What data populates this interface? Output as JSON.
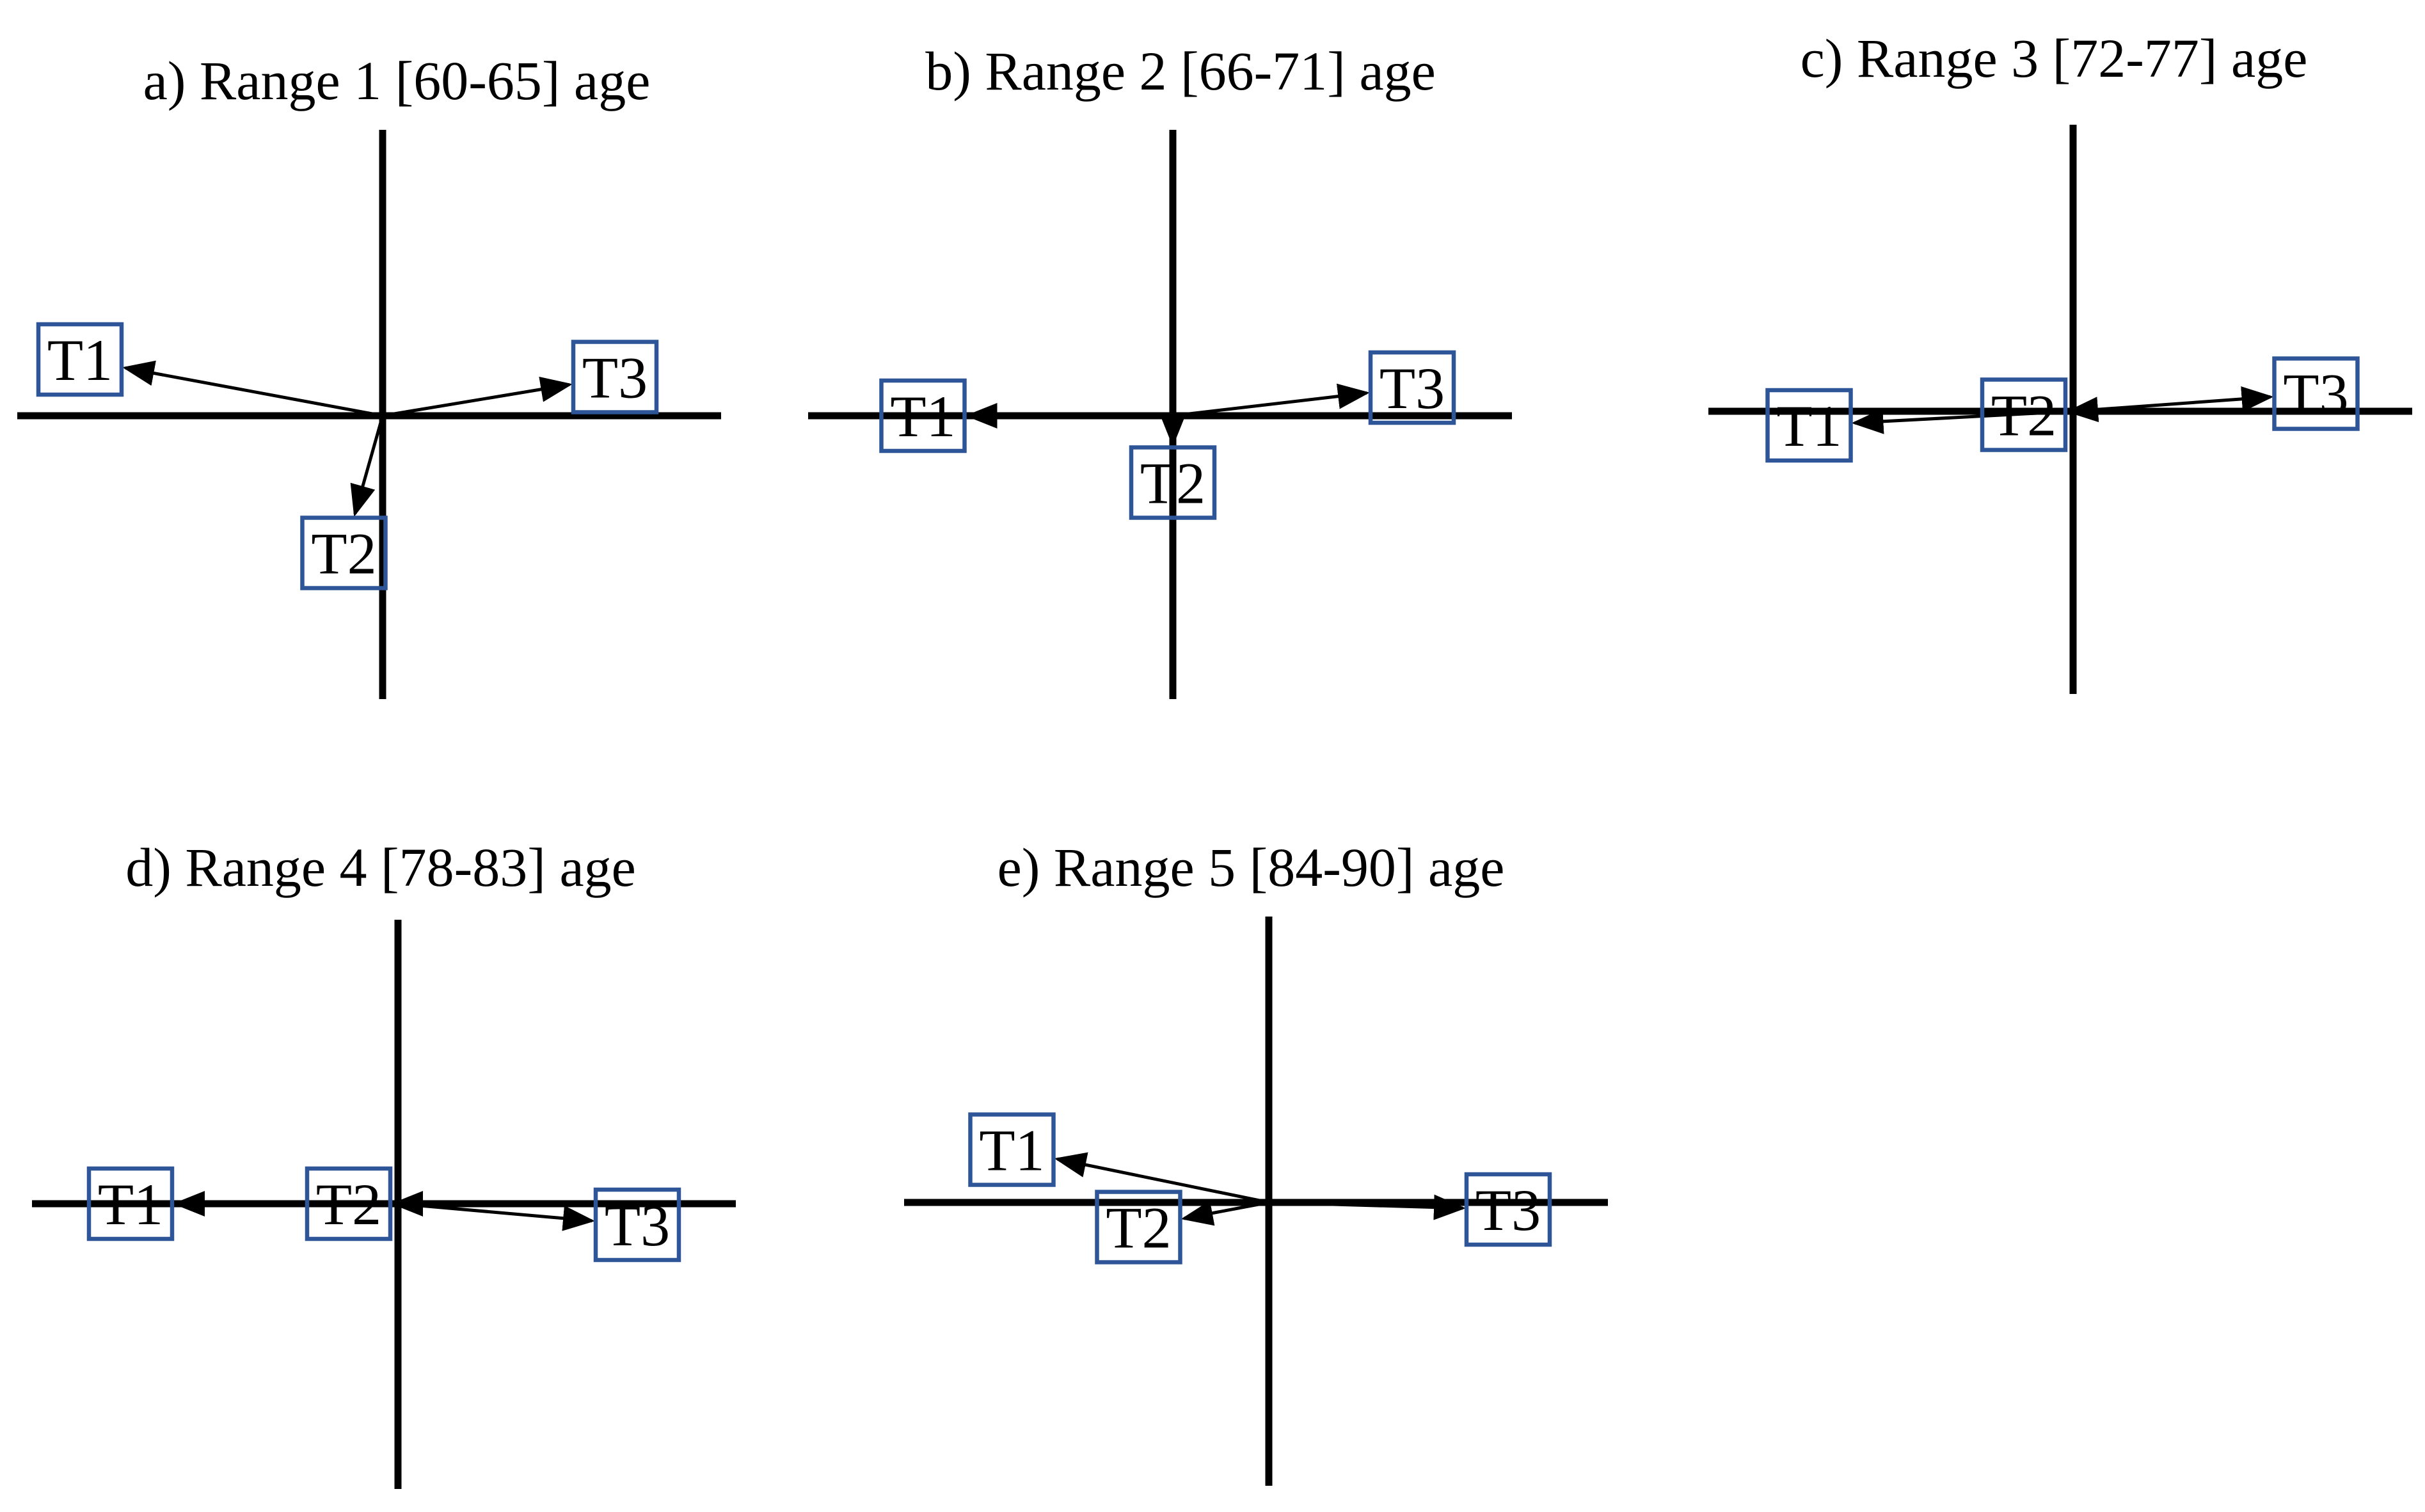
{
  "colors": {
    "box_border": "#2e5597",
    "axis": "#000000",
    "arrow": "#000000"
  },
  "panels": [
    {
      "title": "a) Range 1 [60-65] age",
      "nodes": [
        {
          "label": "T1",
          "dx": -0.86,
          "dy": 0.16
        },
        {
          "label": "T2",
          "dx": -0.11,
          "dy": -0.39
        },
        {
          "label": "T3",
          "dx": 0.66,
          "dy": 0.11
        }
      ]
    },
    {
      "title": "b) Range 2 [66-71] age",
      "nodes": [
        {
          "label": "T1",
          "dx": -0.71,
          "dy": 0.0
        },
        {
          "label": "T2",
          "dx": 0.0,
          "dy": -0.19
        },
        {
          "label": "T3",
          "dx": 0.68,
          "dy": 0.08
        }
      ]
    },
    {
      "title": "c) Range 3 [72-77] age",
      "nodes": [
        {
          "label": "T1",
          "dx": -0.75,
          "dy": -0.04
        },
        {
          "label": "T2",
          "dx": -0.14,
          "dy": -0.01
        },
        {
          "label": "T3",
          "dx": 0.69,
          "dy": 0.05
        }
      ]
    },
    {
      "title": "d) Range 4 [78-83] age",
      "nodes": [
        {
          "label": "T1",
          "dx": -0.76,
          "dy": 0.0
        },
        {
          "label": "T2",
          "dx": -0.14,
          "dy": 0.0
        },
        {
          "label": "T3",
          "dx": 0.68,
          "dy": -0.06
        }
      ]
    },
    {
      "title": "e) Range 5 [84-90] age",
      "nodes": [
        {
          "label": "T1",
          "dx": -0.73,
          "dy": 0.15
        },
        {
          "label": "T2",
          "dx": -0.37,
          "dy": -0.07
        },
        {
          "label": "T3",
          "dx": 0.68,
          "dy": -0.02
        }
      ]
    }
  ]
}
